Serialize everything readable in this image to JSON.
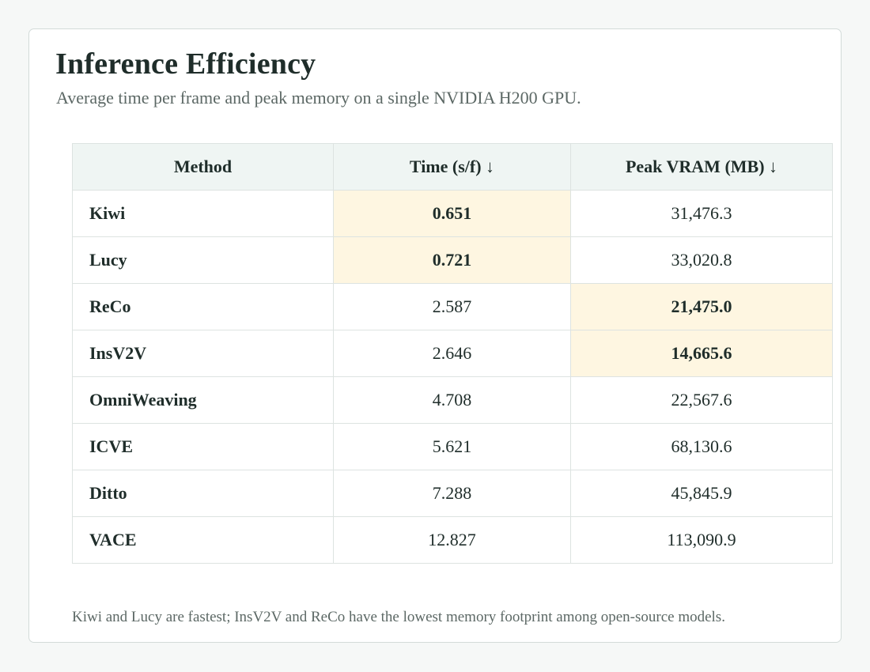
{
  "title": "Inference Efficiency",
  "subtitle": "Average time per frame and peak memory on a single NVIDIA H200 GPU.",
  "footnote": "Kiwi and Lucy are fastest; InsV2V and ReCo have the lowest memory footprint among open-source models.",
  "colors": {
    "header_bg": "#eff5f3",
    "highlight_bg": "#fef6e1",
    "text": "#1f2d2a",
    "muted_text": "#5c6865",
    "border": "#dde3e1"
  },
  "chart_data": {
    "type": "table",
    "title": "Inference Efficiency",
    "subtitle": "Average time per frame and peak memory on a single NVIDIA H200 GPU.",
    "columns": [
      "Method",
      "Time (s/f) ↓",
      "Peak VRAM (MB) ↓"
    ],
    "rows": [
      {
        "method": "Kiwi",
        "time": "0.651",
        "vram": "31,476.3",
        "best_time": true,
        "best_vram": false
      },
      {
        "method": "Lucy",
        "time": "0.721",
        "vram": "33,020.8",
        "best_time": true,
        "best_vram": false
      },
      {
        "method": "ReCo",
        "time": "2.587",
        "vram": "21,475.0",
        "best_time": false,
        "best_vram": true
      },
      {
        "method": "InsV2V",
        "time": "2.646",
        "vram": "14,665.6",
        "best_time": false,
        "best_vram": true
      },
      {
        "method": "OmniWeaving",
        "time": "4.708",
        "vram": "22,567.6",
        "best_time": false,
        "best_vram": false
      },
      {
        "method": "ICVE",
        "time": "5.621",
        "vram": "68,130.6",
        "best_time": false,
        "best_vram": false
      },
      {
        "method": "Ditto",
        "time": "7.288",
        "vram": "45,845.9",
        "best_time": false,
        "best_vram": false
      },
      {
        "method": "VACE",
        "time": "12.827",
        "vram": "113,090.9",
        "best_time": false,
        "best_vram": false
      }
    ]
  }
}
